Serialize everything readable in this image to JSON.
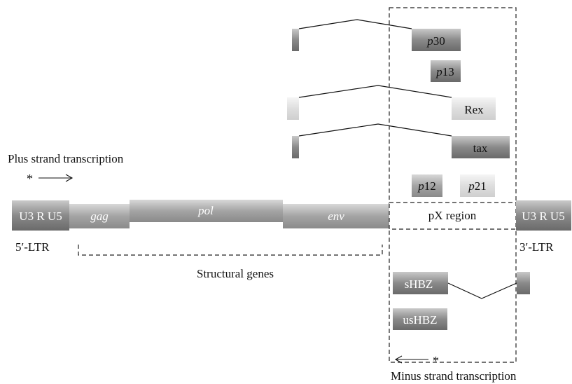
{
  "ltr5": {
    "label": "U3 R U5",
    "caption": "5′-LTR"
  },
  "ltr3": {
    "label": "U3 R U5",
    "caption": "3′-LTR"
  },
  "genes": {
    "gag": "gag",
    "pol": "pol",
    "env": "env",
    "px": "pX region"
  },
  "structural_label": "Structural genes",
  "plus_strand": {
    "star": "*",
    "label": "Plus strand transcription"
  },
  "minus_strand": {
    "star": "*",
    "label": "Minus strand transcription"
  },
  "transcripts": {
    "p30": {
      "prefix": "p",
      "number": "30"
    },
    "p13": {
      "prefix": "p",
      "number": "13"
    },
    "rex": "Rex",
    "tax": "tax",
    "p12": {
      "prefix": "p",
      "number": "12"
    },
    "p21": {
      "prefix": "p",
      "number": "21"
    },
    "shbz": "sHBZ",
    "ushbz": "usHBZ"
  }
}
